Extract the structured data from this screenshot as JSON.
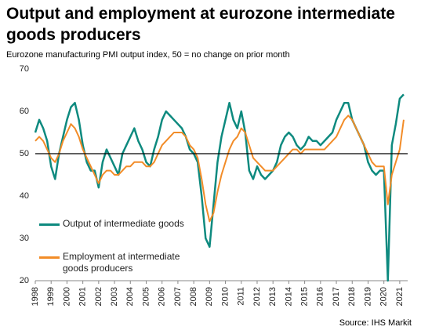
{
  "chart_data": {
    "type": "line",
    "title": "Output and employment at eurozone intermediate goods producers",
    "subtitle": "Eurozone manufacturing PMI output index, 50 = no change on prior month",
    "source": "Source: IHS Markit",
    "x": [
      1998,
      1998.25,
      1998.5,
      1998.75,
      1999,
      1999.25,
      1999.5,
      1999.75,
      2000,
      2000.25,
      2000.5,
      2000.75,
      2001,
      2001.25,
      2001.5,
      2001.75,
      2002,
      2002.25,
      2002.5,
      2002.75,
      2003,
      2003.25,
      2003.5,
      2003.75,
      2004,
      2004.25,
      2004.5,
      2004.75,
      2005,
      2005.25,
      2005.5,
      2005.75,
      2006,
      2006.25,
      2006.5,
      2006.75,
      2007,
      2007.25,
      2007.5,
      2007.75,
      2008,
      2008.25,
      2008.5,
      2008.75,
      2009,
      2009.25,
      2009.5,
      2009.75,
      2010,
      2010.25,
      2010.5,
      2010.75,
      2011,
      2011.25,
      2011.5,
      2011.75,
      2012,
      2012.25,
      2012.5,
      2012.75,
      2013,
      2013.25,
      2013.5,
      2013.75,
      2014,
      2014.25,
      2014.5,
      2014.75,
      2015,
      2015.25,
      2015.5,
      2015.75,
      2016,
      2016.25,
      2016.5,
      2016.75,
      2017,
      2017.25,
      2017.5,
      2017.75,
      2018,
      2018.25,
      2018.5,
      2018.75,
      2019,
      2019.25,
      2019.5,
      2019.75,
      2020,
      2020.25,
      2020.5,
      2020.75,
      2021,
      2021.25
    ],
    "series": [
      {
        "name": "Output of intermediate goods",
        "color": "#0e8a7f",
        "values": [
          55,
          58,
          56,
          53,
          47,
          44,
          50,
          54,
          58,
          61,
          62,
          58,
          52,
          48,
          46,
          46,
          42,
          48,
          51,
          49,
          47,
          45,
          50,
          52,
          54,
          56,
          53,
          51,
          48,
          47,
          51,
          54,
          58,
          60,
          59,
          58,
          57,
          56,
          54,
          51,
          50,
          48,
          40,
          30,
          28,
          38,
          48,
          54,
          58,
          62,
          58,
          56,
          60,
          55,
          46,
          44,
          47,
          45,
          44,
          45,
          46,
          48,
          52,
          54,
          55,
          54,
          52,
          51,
          52,
          54,
          53,
          53,
          52,
          53,
          54,
          55,
          58,
          60,
          62,
          62,
          58,
          56,
          54,
          52,
          48,
          46,
          45,
          46,
          46,
          20,
          52,
          57,
          63,
          64
        ]
      },
      {
        "name": "Employment at intermediate goods producers",
        "color": "#f28c28",
        "values": [
          53,
          54,
          53,
          51,
          49,
          48,
          50,
          53,
          55,
          57,
          56,
          54,
          51,
          49,
          47,
          45,
          43,
          45,
          46,
          46,
          45,
          45,
          46,
          47,
          47,
          48,
          48,
          48,
          47,
          47,
          48,
          50,
          52,
          53,
          54,
          55,
          55,
          55,
          54,
          52,
          51,
          49,
          44,
          38,
          34,
          36,
          41,
          45,
          48,
          51,
          53,
          54,
          56,
          55,
          52,
          49,
          48,
          47,
          46,
          46,
          46,
          47,
          48,
          49,
          50,
          51,
          51,
          50,
          51,
          51,
          51,
          51,
          51,
          51,
          52,
          53,
          54,
          56,
          58,
          59,
          58,
          56,
          54,
          52,
          50,
          48,
          47,
          47,
          47,
          38,
          45,
          48,
          51,
          58
        ]
      }
    ],
    "hline": 50,
    "xlim": [
      1998,
      2021.5
    ],
    "xticks": [
      1998,
      1999,
      2000,
      2001,
      2002,
      2003,
      2004,
      2005,
      2006,
      2007,
      2008,
      2009,
      2010,
      2011,
      2012,
      2013,
      2014,
      2015,
      2016,
      2017,
      2018,
      2019,
      2020,
      2021
    ],
    "ylim": [
      20,
      70
    ],
    "yticks": [
      20,
      30,
      40,
      50,
      60,
      70
    ]
  }
}
